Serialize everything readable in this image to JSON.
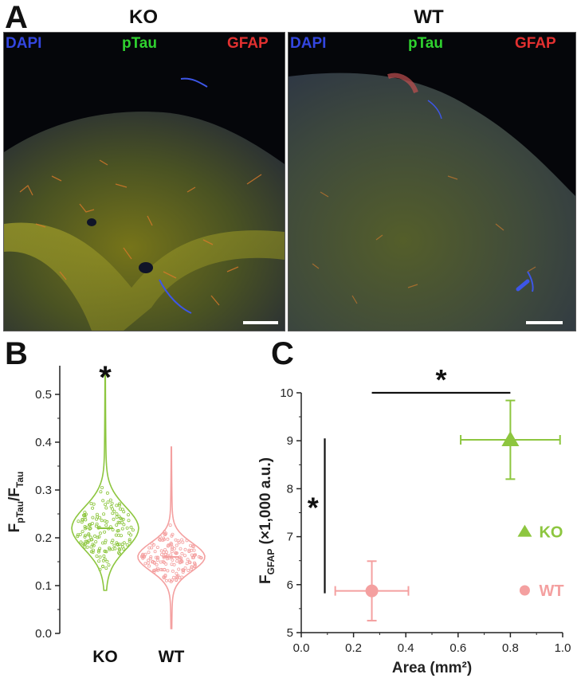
{
  "figure": {
    "panel_labels": [
      "A",
      "B",
      "C"
    ],
    "micrographs": [
      {
        "title": "KO",
        "stains": [
          {
            "label": "DAPI",
            "color": "#3346e0"
          },
          {
            "label": "pTau",
            "color": "#2fd12f"
          },
          {
            "label": "GFAP",
            "color": "#e23030"
          }
        ],
        "scale_bar": "white scale bar"
      },
      {
        "title": "WT",
        "stains": [
          {
            "label": "DAPI",
            "color": "#3346e0"
          },
          {
            "label": "pTau",
            "color": "#2fd12f"
          },
          {
            "label": "GFAP",
            "color": "#e23030"
          }
        ],
        "scale_bar": "white scale bar"
      }
    ]
  },
  "chart_data": [
    {
      "type": "violin",
      "panel": "B",
      "categories": [
        "KO",
        "WT"
      ],
      "ylabel_main": "F",
      "ylabel_sub1": "pTau",
      "ylabel_sep": "/F",
      "ylabel_sub2": "Tau",
      "ylim": [
        0.0,
        0.55
      ],
      "yticks": [
        "0.0",
        "0.1",
        "0.2",
        "0.3",
        "0.4",
        "0.5"
      ],
      "significance": "*",
      "series": [
        {
          "category": "KO",
          "color": "#8dc63f",
          "min": 0.09,
          "q1": 0.19,
          "median": 0.22,
          "q3": 0.25,
          "max": 0.55
        },
        {
          "category": "WT",
          "color": "#f4a0a0",
          "min": 0.01,
          "q1": 0.14,
          "median": 0.16,
          "q3": 0.18,
          "max": 0.39
        }
      ]
    },
    {
      "type": "scatter",
      "panel": "C",
      "xlabel": "Area (mm²)",
      "ylabel_main": "F",
      "ylabel_sub": "GFAP",
      "ylabel_rest": " (×1,000 a.u.)",
      "xlim": [
        0.0,
        1.0
      ],
      "ylim": [
        5,
        10
      ],
      "xticks": [
        "0.0",
        "0.2",
        "0.4",
        "0.6",
        "0.8",
        "1.0"
      ],
      "yticks": [
        "5",
        "6",
        "7",
        "8",
        "9",
        "10"
      ],
      "significance": [
        "*",
        "*"
      ],
      "series": [
        {
          "name": "KO",
          "marker": "triangle",
          "color": "#8dc63f",
          "x": 0.8,
          "y": 9.02,
          "xerr": 0.19,
          "yerr": 0.82
        },
        {
          "name": "WT",
          "marker": "circle",
          "color": "#f4a0a0",
          "x": 0.27,
          "y": 5.87,
          "xerr": 0.14,
          "yerr": 0.62
        }
      ],
      "legend_position": "right"
    }
  ]
}
